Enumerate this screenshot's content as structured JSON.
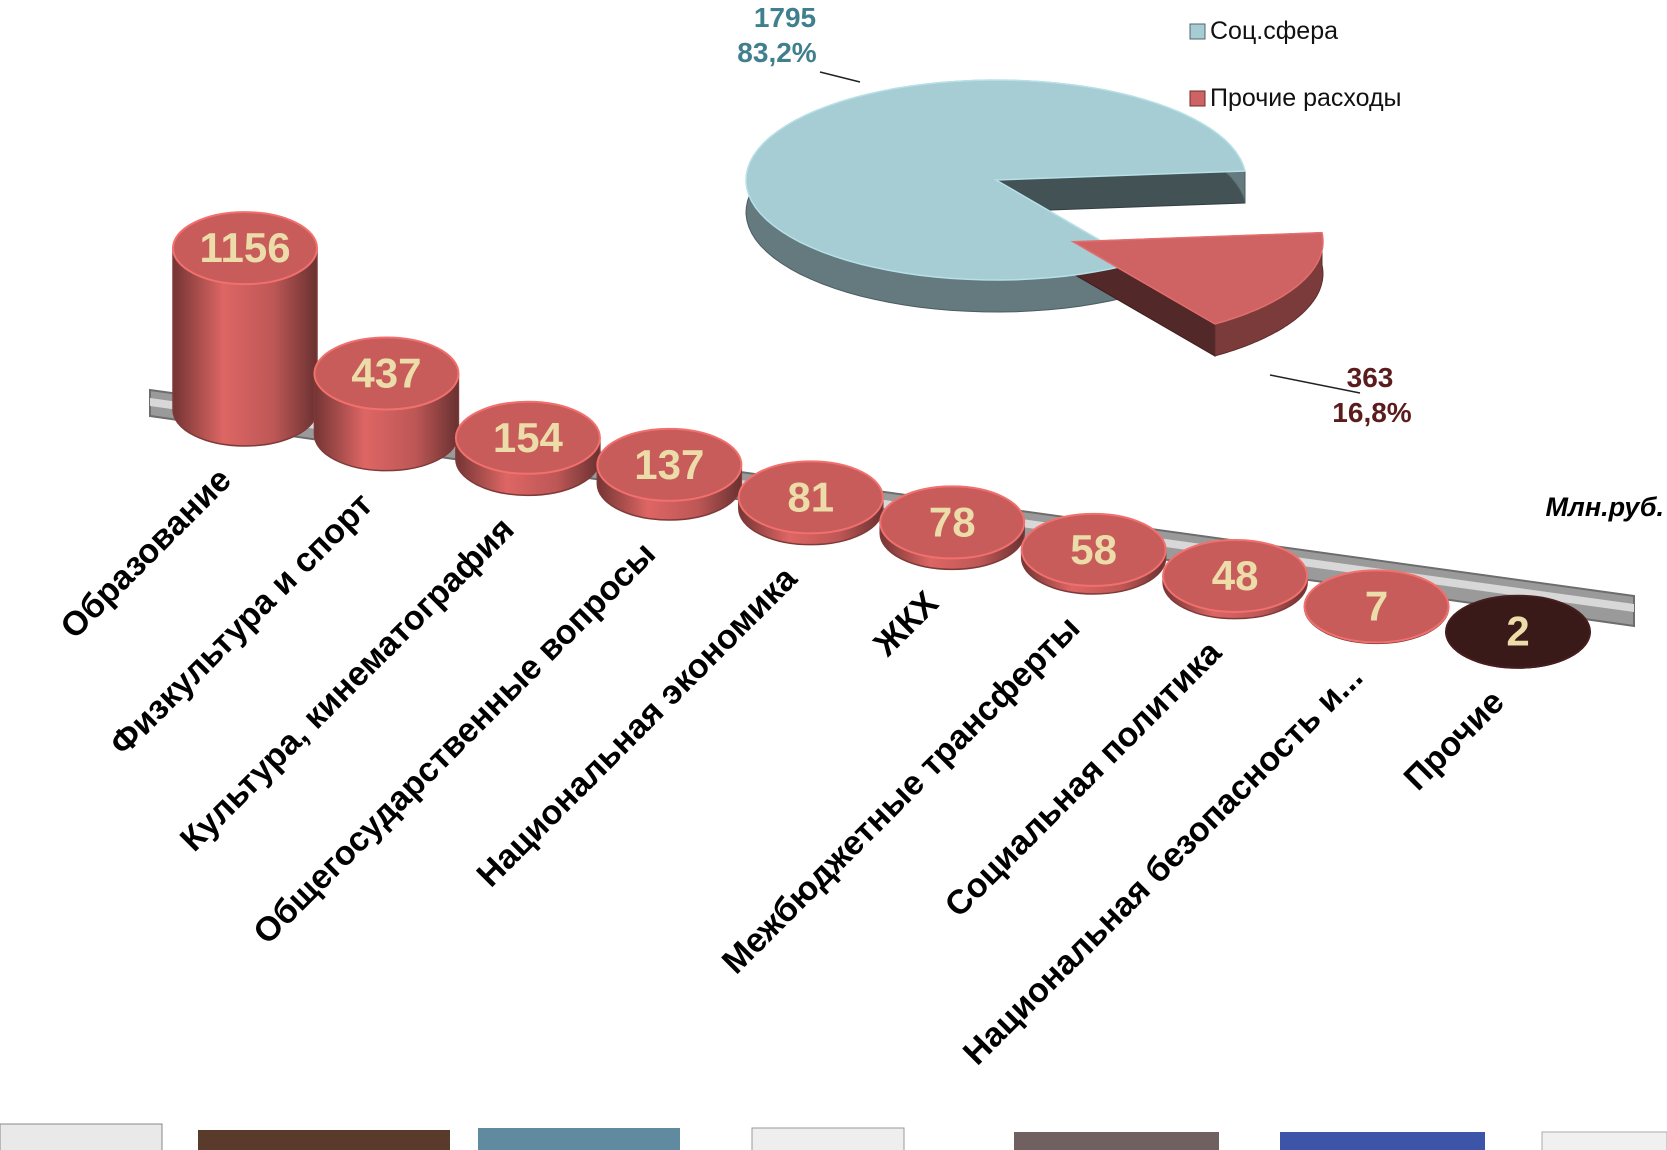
{
  "chart_data": [
    {
      "type": "bar",
      "categories": [
        "Образование",
        "Физкультура и спорт",
        "Культура, кинематография",
        "Общегосударственные вопросы",
        "Национальная экономика",
        "ЖКХ",
        "Межбюджетные трансферты",
        "Социальная политика",
        "Национальная безопасность и...",
        "Прочие"
      ],
      "values": [
        1156,
        437,
        154,
        137,
        81,
        78,
        58,
        48,
        7,
        2
      ],
      "colors": [
        "#d2615f",
        "#d2615f",
        "#d2615f",
        "#d2615f",
        "#d2615f",
        "#d2615f",
        "#d2615f",
        "#d2615f",
        "#d2615f",
        "#3d1a1a"
      ],
      "unit_label": "Млн.руб."
    },
    {
      "type": "pie",
      "categories": [
        "Соц.сфера",
        "Прочие расходы"
      ],
      "values": [
        1795,
        363
      ],
      "percents": [
        83.2,
        16.8
      ],
      "percent_labels": [
        "83,2%",
        "16,8%"
      ],
      "colors": [
        "#a6ccd4",
        "#cf6363"
      ],
      "label_colors": [
        "#3f7f8e",
        "#5a1c1c"
      ],
      "legend": "top-right"
    }
  ]
}
